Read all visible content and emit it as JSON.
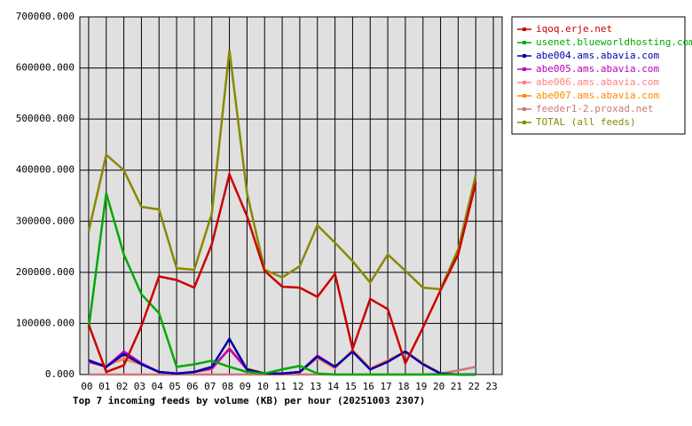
{
  "chart_data": {
    "type": "line",
    "title": "Top 7 incoming feeds by volume (KB) per hour (20251003 2307)",
    "categories": [
      "00",
      "01",
      "02",
      "03",
      "04",
      "05",
      "06",
      "07",
      "08",
      "09",
      "10",
      "11",
      "12",
      "13",
      "14",
      "15",
      "16",
      "17",
      "18",
      "19",
      "20",
      "21",
      "22",
      "23"
    ],
    "ylim": [
      0,
      700000
    ],
    "yticks": [
      {
        "value": 0,
        "label": "0.000"
      },
      {
        "value": 100000,
        "label": "100000.000"
      },
      {
        "value": 200000,
        "label": "200000.000"
      },
      {
        "value": 300000,
        "label": "300000.000"
      },
      {
        "value": 400000,
        "label": "400000.000"
      },
      {
        "value": 500000,
        "label": "500000.000"
      },
      {
        "value": 600000,
        "label": "600000.000"
      },
      {
        "value": 700000,
        "label": "700000.000"
      }
    ],
    "grid": true,
    "legend": "right",
    "series": [
      {
        "name": "iqoq.erje.net",
        "color": "#cc0000",
        "values": [
          98000,
          5000,
          18000,
          95000,
          192000,
          185000,
          170000,
          255000,
          392000,
          310000,
          203000,
          172000,
          170000,
          152000,
          197000,
          50000,
          148000,
          128000,
          22000,
          92000,
          165000,
          235000,
          375000,
          null
        ]
      },
      {
        "name": "usenet.blueworldhosting.com",
        "color": "#00aa00",
        "values": [
          90000,
          355000,
          235000,
          157000,
          120000,
          15000,
          20000,
          27000,
          15000,
          5000,
          2000,
          10000,
          17000,
          2000,
          0,
          0,
          0,
          0,
          0,
          0,
          0,
          0,
          0,
          null
        ]
      },
      {
        "name": "abe004.ams.abavia.com",
        "color": "#0000aa",
        "values": [
          28000,
          15000,
          40000,
          20000,
          5000,
          2000,
          5000,
          15000,
          70000,
          10000,
          2000,
          2000,
          5000,
          35000,
          15000,
          45000,
          10000,
          25000,
          45000,
          20000,
          2000,
          0,
          0,
          null
        ]
      },
      {
        "name": "abe005.ams.abavia.com",
        "color": "#bb00bb",
        "values": [
          25000,
          15000,
          45000,
          22000,
          5000,
          2000,
          5000,
          12000,
          50000,
          10000,
          2000,
          2000,
          5000,
          37000,
          15000,
          45000,
          10000,
          25000,
          45000,
          20000,
          2000,
          0,
          0,
          null
        ]
      },
      {
        "name": "abe006.ams.abavia.com",
        "color": "#ff8080",
        "values": [
          24000,
          17000,
          32000,
          21000,
          5000,
          2000,
          5000,
          11000,
          51000,
          11000,
          2000,
          2000,
          5000,
          33000,
          13000,
          47000,
          11000,
          27000,
          45000,
          21000,
          2000,
          0,
          0,
          null
        ]
      },
      {
        "name": "abe007.ams.abavia.com",
        "color": "#ff8800",
        "values": [
          25000,
          18000,
          30000,
          20000,
          5000,
          2000,
          5000,
          10000,
          52000,
          12000,
          2000,
          2000,
          5000,
          32000,
          12000,
          48000,
          12000,
          28000,
          45000,
          22000,
          2000,
          0,
          0,
          null
        ]
      },
      {
        "name": "feeder1-2.proxad.net",
        "color": "#cc7777",
        "values": [
          0,
          0,
          0,
          0,
          0,
          0,
          0,
          0,
          0,
          0,
          0,
          0,
          0,
          0,
          0,
          0,
          0,
          0,
          0,
          0,
          2000,
          8000,
          15000,
          null
        ]
      },
      {
        "name": "TOTAL (all feeds)",
        "color": "#888800",
        "values": [
          280000,
          430000,
          400000,
          328000,
          323000,
          208000,
          205000,
          315000,
          635000,
          355000,
          205000,
          190000,
          212000,
          292000,
          258000,
          222000,
          180000,
          235000,
          203000,
          170000,
          167000,
          245000,
          390000,
          null
        ]
      }
    ]
  }
}
